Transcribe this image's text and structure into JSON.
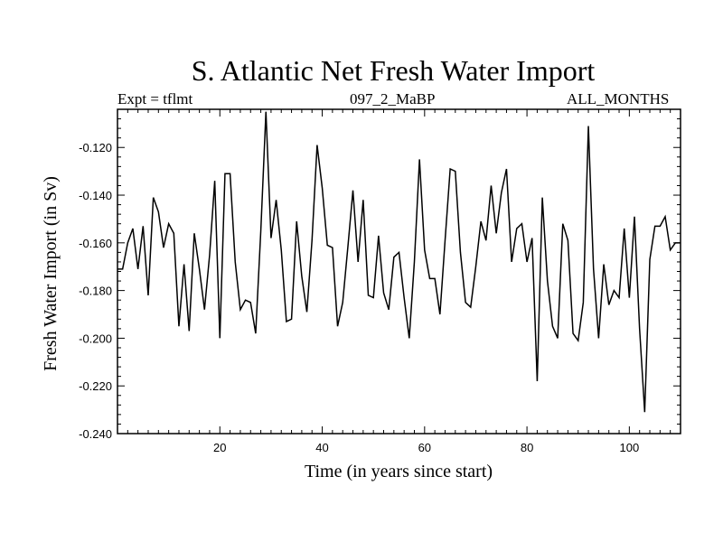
{
  "chart_data": {
    "type": "line",
    "title": "S. Atlantic Net Fresh Water Import",
    "subtitle_left": "Expt = tflmt",
    "subtitle_center": "097_2_MaBP",
    "subtitle_right": "ALL_MONTHS",
    "xlabel": "Time (in years since start)",
    "ylabel": "Fresh Water Import (in Sv)",
    "xlim": [
      0,
      110
    ],
    "ylim": [
      -0.24,
      -0.104
    ],
    "xticks": [
      20,
      40,
      60,
      80,
      100
    ],
    "yticks": [
      -0.12,
      -0.14,
      -0.16,
      -0.18,
      -0.2,
      -0.22,
      -0.24
    ],
    "xtick_labels": [
      "20",
      "40",
      "60",
      "80",
      "100"
    ],
    "ytick_labels": [
      "-0.120",
      "-0.140",
      "-0.160",
      "-0.180",
      "-0.200",
      "-0.220",
      "-0.240"
    ],
    "series": [
      {
        "name": "Fresh Water Import",
        "x": [
          0,
          1,
          2,
          3,
          4,
          5,
          6,
          7,
          8,
          9,
          10,
          11,
          12,
          13,
          14,
          15,
          16,
          17,
          18,
          19,
          20,
          21,
          22,
          23,
          24,
          25,
          26,
          27,
          28,
          29,
          30,
          31,
          32,
          33,
          34,
          35,
          36,
          37,
          38,
          39,
          40,
          41,
          42,
          43,
          44,
          45,
          46,
          47,
          48,
          49,
          50,
          51,
          52,
          53,
          54,
          55,
          56,
          57,
          58,
          59,
          60,
          61,
          62,
          63,
          64,
          65,
          66,
          67,
          68,
          69,
          70,
          71,
          72,
          73,
          74,
          75,
          76,
          77,
          78,
          79,
          80,
          81,
          82,
          83,
          84,
          85,
          86,
          87,
          88,
          89,
          90,
          91,
          92,
          93,
          94,
          95,
          96,
          97,
          98,
          99,
          100,
          101,
          102,
          103,
          104,
          105,
          106,
          107,
          108,
          109,
          110
        ],
        "values": [
          -0.171,
          -0.171,
          -0.16,
          -0.154,
          -0.171,
          -0.153,
          -0.182,
          -0.141,
          -0.147,
          -0.162,
          -0.152,
          -0.156,
          -0.195,
          -0.169,
          -0.197,
          -0.156,
          -0.171,
          -0.188,
          -0.165,
          -0.134,
          -0.2,
          -0.131,
          -0.131,
          -0.168,
          -0.188,
          -0.184,
          -0.185,
          -0.198,
          -0.155,
          -0.105,
          -0.158,
          -0.142,
          -0.163,
          -0.193,
          -0.192,
          -0.151,
          -0.174,
          -0.189,
          -0.159,
          -0.119,
          -0.137,
          -0.161,
          -0.162,
          -0.195,
          -0.185,
          -0.162,
          -0.138,
          -0.168,
          -0.142,
          -0.182,
          -0.183,
          -0.157,
          -0.181,
          -0.188,
          -0.166,
          -0.164,
          -0.183,
          -0.2,
          -0.168,
          -0.125,
          -0.163,
          -0.175,
          -0.175,
          -0.19,
          -0.159,
          -0.129,
          -0.13,
          -0.164,
          -0.185,
          -0.187,
          -0.17,
          -0.151,
          -0.159,
          -0.136,
          -0.156,
          -0.139,
          -0.129,
          -0.168,
          -0.154,
          -0.152,
          -0.168,
          -0.158,
          -0.218,
          -0.141,
          -0.176,
          -0.195,
          -0.2,
          -0.152,
          -0.159,
          -0.198,
          -0.201,
          -0.185,
          -0.111,
          -0.171,
          -0.2,
          -0.169,
          -0.186,
          -0.18,
          -0.183,
          -0.154,
          -0.183,
          -0.149,
          -0.196,
          -0.231,
          -0.167,
          -0.153,
          -0.153,
          -0.149,
          -0.163,
          -0.16,
          -0.16
        ]
      }
    ]
  }
}
